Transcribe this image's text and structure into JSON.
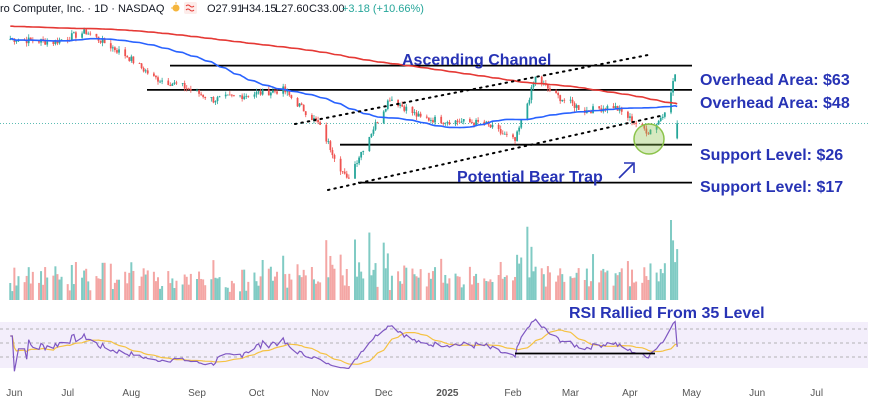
{
  "header": {
    "symbol_text": "ro Computer, Inc. · 1D · NASDAQ",
    "ohlc": [
      {
        "label": "O",
        "value": "27.91"
      },
      {
        "label": "H",
        "value": "34.15"
      },
      {
        "label": "L",
        "value": "27.60"
      },
      {
        "label": "C",
        "value": "33.00"
      }
    ],
    "change": "+3.18 (+10.66%)"
  },
  "annotations": {
    "ascending_channel": "Ascending Channel",
    "overhead_63": "Overhead Area: $63",
    "overhead_48": "Overhead Area: $48",
    "support_26": "Support Level: $26",
    "support_17": "Support Level: $17",
    "bear_trap": "Potential Bear Trap",
    "rsi_note": "RSI Rallied From 35 Level"
  },
  "colors": {
    "up": "#26a69a",
    "down": "#ef5350",
    "ma50": "#2962ff",
    "ma200": "#e53935",
    "annotation": "#2733b5",
    "rsi": "#7e57c2",
    "rsi_signal": "#f5c242",
    "highlight": "#8bc34a"
  },
  "chart_data": {
    "type": "candlestick",
    "x_tick_labels": [
      "Jun",
      "Jul",
      "Aug",
      "Sep",
      "Oct",
      "Nov",
      "Dec",
      "2025",
      "Feb",
      "Mar",
      "Apr",
      "May",
      "Jun",
      "Jul"
    ],
    "y_scale": "log",
    "price_window": [
      10,
      105
    ],
    "levels": [
      {
        "label": "Overhead Area: $63",
        "value": 63
      },
      {
        "label": "Overhead Area: $48",
        "value": 48
      },
      {
        "label": "Support Level: $26",
        "value": 26
      },
      {
        "label": "Support Level: $17",
        "value": 17
      }
    ],
    "last_bar": {
      "open": 27.91,
      "high": 34.15,
      "low": 27.6,
      "close": 33.0
    },
    "close_path": [
      {
        "date": "2024-06-03",
        "close": 85
      },
      {
        "date": "2024-06-24",
        "close": 82
      },
      {
        "date": "2024-07-10",
        "close": 92
      },
      {
        "date": "2024-07-30",
        "close": 70
      },
      {
        "date": "2024-08-12",
        "close": 55
      },
      {
        "date": "2024-08-26",
        "close": 50
      },
      {
        "date": "2024-09-10",
        "close": 43
      },
      {
        "date": "2024-09-30",
        "close": 46
      },
      {
        "date": "2024-10-14",
        "close": 48
      },
      {
        "date": "2024-10-31",
        "close": 33
      },
      {
        "date": "2024-11-14",
        "close": 17.5
      },
      {
        "date": "2024-11-26",
        "close": 30
      },
      {
        "date": "2024-12-05",
        "close": 44
      },
      {
        "date": "2024-12-20",
        "close": 35
      },
      {
        "date": "2025-01-02",
        "close": 34
      },
      {
        "date": "2025-01-20",
        "close": 33
      },
      {
        "date": "2025-02-04",
        "close": 27
      },
      {
        "date": "2025-02-14",
        "close": 55
      },
      {
        "date": "2025-02-24",
        "close": 45
      },
      {
        "date": "2025-03-10",
        "close": 38
      },
      {
        "date": "2025-03-24",
        "close": 40
      },
      {
        "date": "2025-04-04",
        "close": 33
      },
      {
        "date": "2025-04-10",
        "close": 30
      },
      {
        "date": "2025-04-17",
        "close": 36
      },
      {
        "date": "2025-04-22",
        "close": 52
      },
      {
        "date": "2025-04-24",
        "close": 63
      }
    ],
    "series": [
      {
        "name": "50-day MA",
        "color": "#2962ff"
      },
      {
        "name": "200-day MA",
        "color": "#e53935"
      },
      {
        "name": "Volume"
      },
      {
        "name": "RSI",
        "color": "#7e57c2"
      }
    ],
    "rsi_levels": [
      30,
      50,
      70
    ],
    "legend": "none",
    "grid": false
  }
}
